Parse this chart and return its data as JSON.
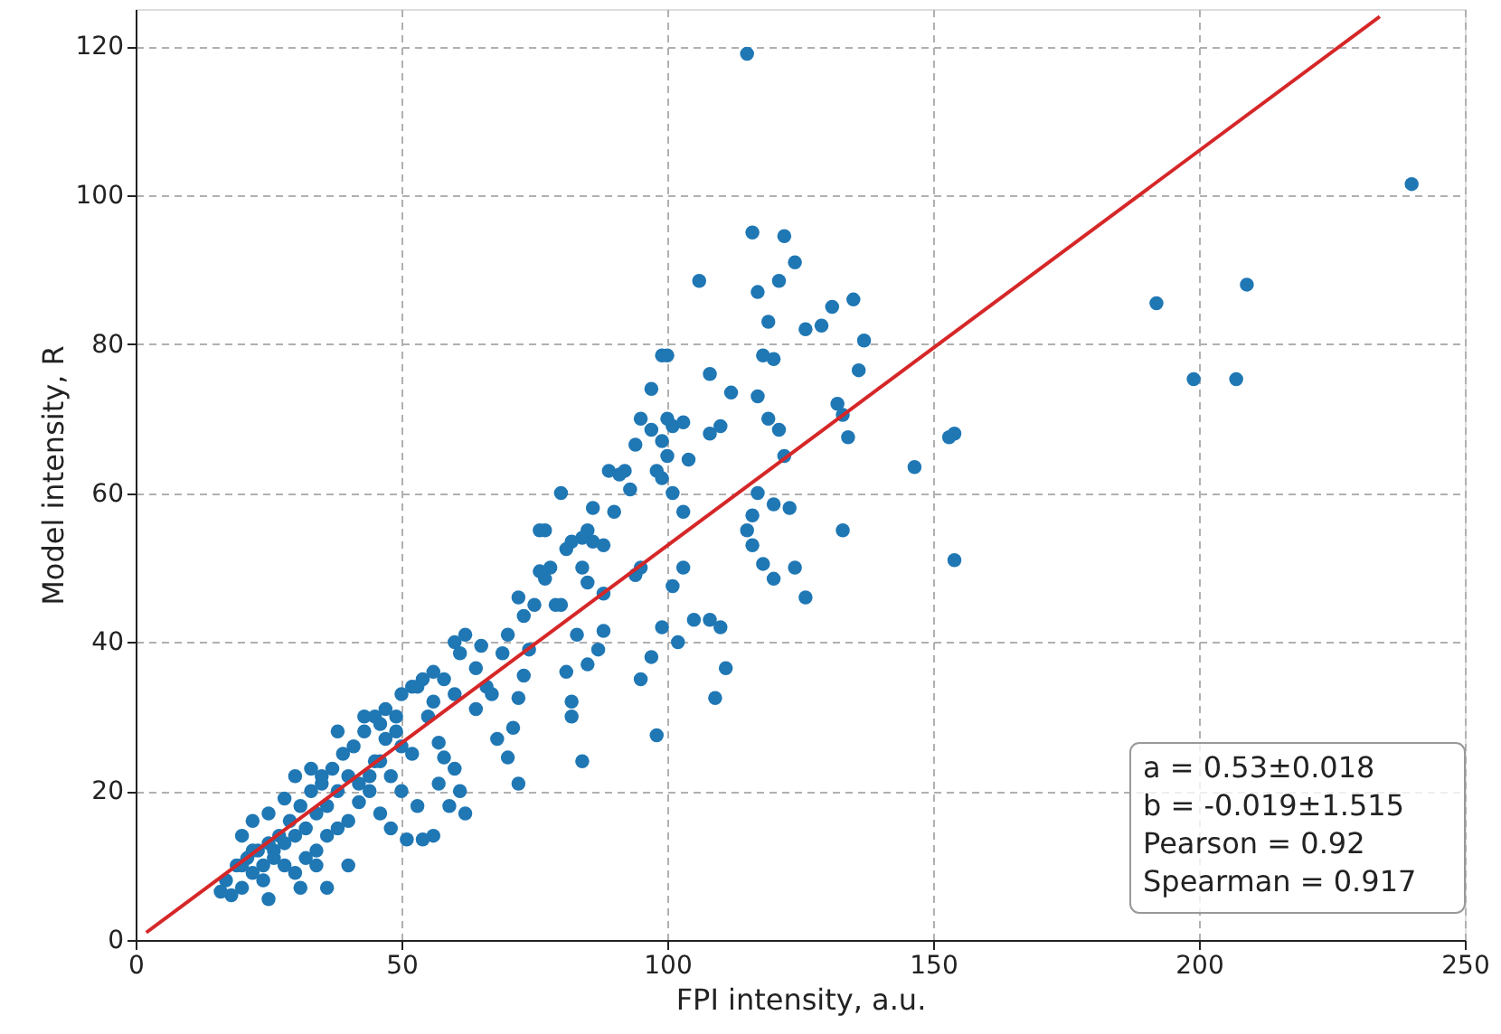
{
  "chart_data": {
    "type": "scatter",
    "xlabel": "FPI intensity, a.u.",
    "ylabel": "Model intensity, R",
    "xlim": [
      0,
      250
    ],
    "xticks": [
      0,
      50,
      100,
      150,
      200,
      250
    ],
    "ylim": [
      0,
      125
    ],
    "yticks": [
      0,
      20,
      40,
      60,
      80,
      100,
      120
    ],
    "grid": true,
    "marker": "circle",
    "annotations": [
      "a = 0.53±0.018",
      "b = -0.019±1.515",
      "Pearson = 0.92",
      "Spearman = 0.917"
    ],
    "series": [
      {
        "color": "#1f77b4",
        "x": [
          115,
          240,
          192,
          209,
          199,
          207,
          153,
          154,
          146.5,
          154,
          133,
          137,
          135,
          136,
          132,
          133,
          134,
          129,
          131,
          126,
          124,
          122,
          116,
          117,
          121,
          119,
          118,
          120,
          117,
          121,
          119,
          117,
          122,
          123,
          120,
          116,
          116,
          118,
          120,
          126,
          124,
          115,
          110,
          111,
          109,
          108,
          105,
          102,
          101,
          99,
          98,
          103,
          95,
          95,
          94,
          97,
          112,
          108,
          106,
          110,
          108,
          104,
          103,
          101,
          100,
          99,
          98,
          100,
          99,
          101,
          103,
          99,
          100,
          97,
          94,
          97,
          95,
          92,
          91,
          93,
          90,
          88,
          85,
          84,
          86,
          85,
          84,
          82,
          80,
          81,
          79,
          80,
          78,
          77,
          76,
          76,
          75,
          73,
          88,
          87,
          85,
          88,
          83,
          82,
          81,
          82,
          84,
          74,
          73,
          72,
          71,
          70,
          68,
          72,
          66,
          69,
          64,
          65,
          62,
          60,
          61,
          58,
          56,
          54,
          52,
          55,
          57,
          58,
          60,
          61,
          59,
          62,
          56,
          54,
          51,
          48,
          46,
          44,
          42,
          40,
          38,
          36,
          34,
          32,
          30,
          28,
          26,
          24,
          22,
          20,
          18,
          16,
          17,
          19,
          21,
          23,
          25,
          27,
          29,
          31,
          33,
          35,
          37,
          39,
          41,
          43,
          45,
          47,
          49,
          50,
          52,
          48,
          46,
          44,
          42,
          40,
          38,
          36,
          34,
          32,
          30,
          28,
          26,
          24,
          22,
          20,
          22,
          25,
          30,
          35,
          33,
          38,
          43,
          45,
          47,
          50,
          53,
          56,
          60,
          64,
          67,
          70,
          72,
          77,
          86,
          89,
          40,
          36,
          25,
          50,
          53,
          57,
          31,
          34,
          20,
          28,
          46,
          49
        ],
        "values": [
          119,
          101.5,
          85.5,
          88,
          75.3,
          75.3,
          67.5,
          68,
          63.5,
          51,
          55,
          80.5,
          86,
          76.5,
          72,
          70.5,
          67.5,
          82.5,
          85,
          82,
          91,
          94.5,
          95,
          87,
          88.5,
          83,
          78.5,
          78,
          73,
          68.5,
          70,
          60,
          65,
          58,
          58.5,
          57,
          53,
          50.5,
          48.5,
          46,
          50,
          55,
          42,
          36.5,
          32.5,
          43,
          43,
          40,
          47.5,
          42,
          27.5,
          50,
          35,
          50,
          49,
          38,
          73.5,
          76,
          88.5,
          69,
          68,
          64.5,
          57.5,
          60,
          65,
          62,
          63,
          70,
          67,
          69,
          69.5,
          78.5,
          78.5,
          74,
          66.5,
          68.5,
          70,
          63,
          62.5,
          60.5,
          57.5,
          53,
          55,
          54,
          53.5,
          48,
          50,
          53.5,
          60,
          52.5,
          45,
          45,
          50,
          48.5,
          49.5,
          55,
          45,
          43.5,
          46.5,
          39,
          37,
          41.5,
          41,
          32,
          36,
          30,
          24,
          39,
          35.5,
          32.5,
          28.5,
          24.5,
          27,
          21,
          34,
          38.5,
          36.5,
          39.5,
          41,
          40,
          38.5,
          35,
          36,
          35,
          34,
          30,
          26.5,
          24.5,
          23,
          20,
          18,
          17,
          14,
          13.5,
          13.5,
          15,
          17,
          20,
          18.5,
          16,
          15,
          14,
          12,
          11,
          9,
          10,
          11,
          8,
          9,
          7,
          6,
          6.5,
          8,
          10,
          11,
          12,
          13,
          14,
          16,
          18,
          20,
          21,
          23,
          25,
          26,
          28,
          30,
          31,
          28,
          26,
          25,
          22,
          24,
          22,
          21,
          22,
          20,
          18,
          17,
          15,
          14,
          13,
          12,
          10,
          12,
          14,
          16,
          17,
          22,
          22,
          23,
          28,
          30,
          24,
          27,
          33,
          34,
          32,
          33,
          31,
          33,
          41,
          46,
          55,
          58,
          63,
          10,
          7,
          5.5,
          20,
          18,
          21,
          7,
          10,
          10,
          19,
          29,
          30
        ]
      },
      {
        "type": "line",
        "color": "#d62728",
        "marker": "none",
        "line_style": "solid",
        "x": [
          2,
          234
        ],
        "values": [
          1,
          124
        ]
      }
    ]
  }
}
